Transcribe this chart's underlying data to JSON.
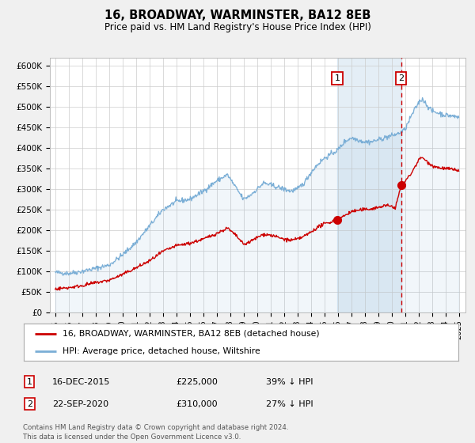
{
  "title": "16, BROADWAY, WARMINSTER, BA12 8EB",
  "subtitle": "Price paid vs. HM Land Registry's House Price Index (HPI)",
  "ylim": [
    0,
    620000
  ],
  "yticks": [
    0,
    50000,
    100000,
    150000,
    200000,
    250000,
    300000,
    350000,
    400000,
    450000,
    500000,
    550000,
    600000
  ],
  "ytick_labels": [
    "£0",
    "£50K",
    "£100K",
    "£150K",
    "£200K",
    "£250K",
    "£300K",
    "£350K",
    "£400K",
    "£450K",
    "£500K",
    "£550K",
    "£600K"
  ],
  "hpi_color": "#7aaed6",
  "price_color": "#cc0000",
  "event1_date": 2015.96,
  "event1_price": 225000,
  "event2_date": 2020.72,
  "event2_price": 310000,
  "legend_label1": "16, BROADWAY, WARMINSTER, BA12 8EB (detached house)",
  "legend_label2": "HPI: Average price, detached house, Wiltshire",
  "footnote1": "Contains HM Land Registry data © Crown copyright and database right 2024.",
  "footnote2": "This data is licensed under the Open Government Licence v3.0.",
  "table_row1": [
    "1",
    "16-DEC-2015",
    "£225,000",
    "39% ↓ HPI"
  ],
  "table_row2": [
    "2",
    "22-SEP-2020",
    "£310,000",
    "27% ↓ HPI"
  ],
  "background_color": "#f0f0f0",
  "plot_bg_color": "#ffffff",
  "shade_start": 2015.96,
  "shade_end": 2020.72,
  "xlim_left": 1994.6,
  "xlim_right": 2025.5,
  "hpi_keypoints": [
    [
      1995.0,
      97000
    ],
    [
      1996.0,
      95000
    ],
    [
      1997.0,
      100000
    ],
    [
      1998.0,
      107000
    ],
    [
      1999.0,
      115000
    ],
    [
      2000.0,
      140000
    ],
    [
      2001.0,
      170000
    ],
    [
      2002.0,
      210000
    ],
    [
      2003.0,
      250000
    ],
    [
      2004.0,
      270000
    ],
    [
      2005.0,
      275000
    ],
    [
      2006.0,
      295000
    ],
    [
      2007.0,
      320000
    ],
    [
      2007.8,
      335000
    ],
    [
      2008.5,
      300000
    ],
    [
      2009.0,
      275000
    ],
    [
      2009.5,
      285000
    ],
    [
      2010.0,
      300000
    ],
    [
      2010.5,
      315000
    ],
    [
      2011.0,
      310000
    ],
    [
      2011.5,
      305000
    ],
    [
      2012.0,
      300000
    ],
    [
      2012.5,
      295000
    ],
    [
      2013.0,
      300000
    ],
    [
      2013.5,
      315000
    ],
    [
      2014.0,
      340000
    ],
    [
      2014.5,
      360000
    ],
    [
      2015.0,
      375000
    ],
    [
      2015.5,
      385000
    ],
    [
      2016.0,
      395000
    ],
    [
      2016.5,
      415000
    ],
    [
      2017.0,
      425000
    ],
    [
      2017.5,
      420000
    ],
    [
      2018.0,
      415000
    ],
    [
      2018.5,
      415000
    ],
    [
      2019.0,
      420000
    ],
    [
      2019.5,
      425000
    ],
    [
      2020.0,
      430000
    ],
    [
      2020.5,
      435000
    ],
    [
      2021.0,
      445000
    ],
    [
      2021.5,
      480000
    ],
    [
      2022.0,
      510000
    ],
    [
      2022.3,
      520000
    ],
    [
      2022.5,
      510000
    ],
    [
      2023.0,
      490000
    ],
    [
      2023.5,
      485000
    ],
    [
      2024.0,
      480000
    ],
    [
      2024.5,
      478000
    ],
    [
      2025.0,
      475000
    ]
  ],
  "price_keypoints": [
    [
      1995.0,
      57000
    ],
    [
      1996.0,
      60000
    ],
    [
      1997.0,
      65000
    ],
    [
      1998.0,
      72000
    ],
    [
      1999.0,
      78000
    ],
    [
      2000.0,
      92000
    ],
    [
      2001.0,
      108000
    ],
    [
      2002.0,
      125000
    ],
    [
      2003.0,
      148000
    ],
    [
      2004.0,
      162000
    ],
    [
      2005.0,
      168000
    ],
    [
      2006.0,
      178000
    ],
    [
      2007.0,
      192000
    ],
    [
      2007.8,
      205000
    ],
    [
      2008.5,
      185000
    ],
    [
      2009.0,
      165000
    ],
    [
      2009.5,
      172000
    ],
    [
      2010.0,
      182000
    ],
    [
      2010.5,
      190000
    ],
    [
      2011.0,
      188000
    ],
    [
      2011.5,
      183000
    ],
    [
      2012.0,
      178000
    ],
    [
      2012.5,
      175000
    ],
    [
      2013.0,
      178000
    ],
    [
      2013.5,
      185000
    ],
    [
      2014.0,
      195000
    ],
    [
      2014.5,
      207000
    ],
    [
      2015.0,
      215000
    ],
    [
      2015.5,
      220000
    ],
    [
      2015.96,
      225000
    ],
    [
      2016.5,
      235000
    ],
    [
      2017.0,
      245000
    ],
    [
      2017.5,
      248000
    ],
    [
      2018.0,
      250000
    ],
    [
      2018.5,
      252000
    ],
    [
      2019.0,
      255000
    ],
    [
      2019.5,
      260000
    ],
    [
      2020.0,
      258000
    ],
    [
      2020.3,
      255000
    ],
    [
      2020.72,
      310000
    ],
    [
      2021.0,
      318000
    ],
    [
      2021.5,
      340000
    ],
    [
      2022.0,
      370000
    ],
    [
      2022.3,
      378000
    ],
    [
      2022.5,
      370000
    ],
    [
      2023.0,
      358000
    ],
    [
      2023.5,
      352000
    ],
    [
      2024.0,
      350000
    ],
    [
      2024.5,
      348000
    ],
    [
      2025.0,
      345000
    ]
  ]
}
